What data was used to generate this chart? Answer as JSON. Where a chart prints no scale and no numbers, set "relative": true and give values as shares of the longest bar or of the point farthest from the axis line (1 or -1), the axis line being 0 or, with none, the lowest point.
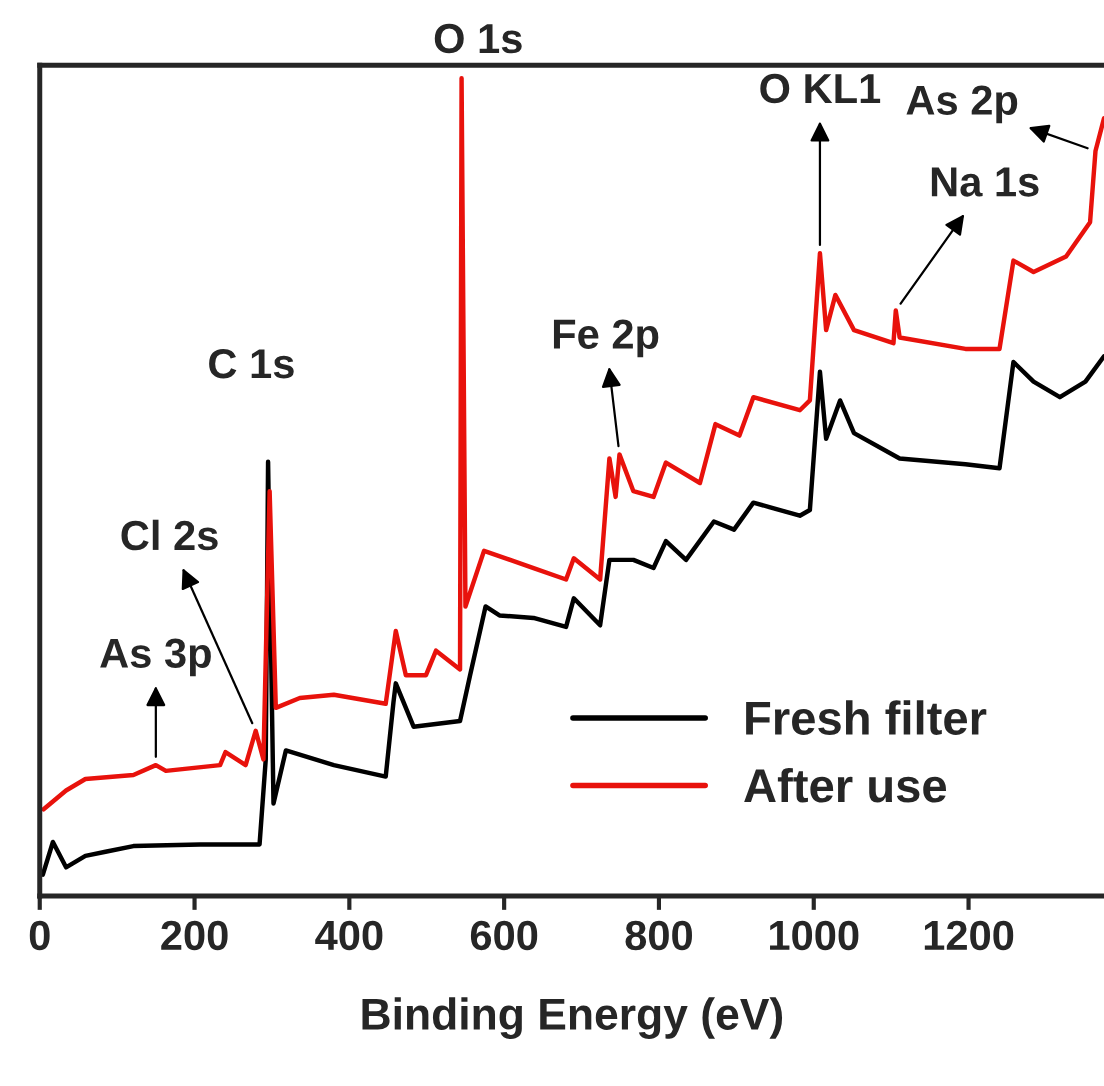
{
  "chart_data": {
    "type": "line",
    "relative": true,
    "xlabel": "Binding Energy (eV)",
    "xlim": [
      0,
      1375
    ],
    "xticks": [
      0,
      200,
      400,
      600,
      800,
      1000,
      1200
    ],
    "legend": "bottom right",
    "grid": false,
    "tick_labels": "x",
    "series": [
      {
        "name": "Fresh filter",
        "color": "#000000",
        "x": [
          4,
          17,
          34,
          59,
          85,
          121,
          207,
          284,
          292,
          295,
          302,
          318,
          380,
          447,
          457,
          460,
          483,
          543,
          556,
          576,
          594,
          638,
          680,
          690,
          724,
          736,
          767,
          793,
          809,
          835,
          871,
          897,
          922,
          982,
          995,
          1008,
          1016,
          1034,
          1052,
          1111,
          1196,
          1240,
          1258,
          1284,
          1318,
          1351,
          1375
        ],
        "values": [
          0.026,
          0.066,
          0.035,
          0.049,
          0.054,
          0.061,
          0.063,
          0.063,
          0.167,
          0.531,
          0.113,
          0.178,
          0.16,
          0.146,
          0.237,
          0.26,
          0.207,
          0.214,
          0.27,
          0.354,
          0.343,
          0.34,
          0.329,
          0.364,
          0.331,
          0.411,
          0.411,
          0.401,
          0.434,
          0.411,
          0.458,
          0.448,
          0.481,
          0.465,
          0.472,
          0.641,
          0.559,
          0.606,
          0.566,
          0.535,
          0.528,
          0.523,
          0.653,
          0.629,
          0.61,
          0.629,
          0.66
        ]
      },
      {
        "name": "After use",
        "color": "#e8120c",
        "x": [
          5,
          34,
          59,
          121,
          150,
          163,
          233,
          240,
          266,
          279,
          289,
          297,
          305,
          336,
          380,
          447,
          460,
          473,
          499,
          512,
          543,
          545,
          550,
          574,
          638,
          680,
          690,
          724,
          736,
          744,
          749,
          767,
          793,
          809,
          853,
          873,
          904,
          922,
          982,
          995,
          1008,
          1016,
          1028,
          1052,
          1103,
          1106,
          1111,
          1196,
          1240,
          1258,
          1284,
          1326,
          1357,
          1364,
          1375
        ],
        "values": [
          0.106,
          0.129,
          0.143,
          0.148,
          0.16,
          0.153,
          0.16,
          0.176,
          0.16,
          0.202,
          0.167,
          0.495,
          0.23,
          0.242,
          0.246,
          0.235,
          0.324,
          0.27,
          0.27,
          0.3,
          0.277,
          1.0,
          0.354,
          0.422,
          0.401,
          0.387,
          0.413,
          0.387,
          0.535,
          0.488,
          0.54,
          0.495,
          0.488,
          0.53,
          0.505,
          0.577,
          0.563,
          0.61,
          0.594,
          0.606,
          0.786,
          0.692,
          0.735,
          0.692,
          0.676,
          0.716,
          0.683,
          0.669,
          0.669,
          0.777,
          0.763,
          0.782,
          0.824,
          0.911,
          0.951
        ]
      }
    ],
    "annotations": [
      {
        "text": "As 3p",
        "x": 150,
        "y": 0.16
      },
      {
        "text": "Cl 2s",
        "x": 279,
        "y": 0.202
      },
      {
        "text": "C 1s",
        "x": 295,
        "y": 0.531
      },
      {
        "text": "O 1s",
        "x": 545,
        "y": 1.0
      },
      {
        "text": "Fe 2p",
        "x": 749,
        "y": 0.54
      },
      {
        "text": "O KL1",
        "x": 1008,
        "y": 0.786
      },
      {
        "text": "Na 1s",
        "x": 1106,
        "y": 0.716
      },
      {
        "text": "As 2p",
        "x": 1364,
        "y": 0.911
      }
    ]
  }
}
